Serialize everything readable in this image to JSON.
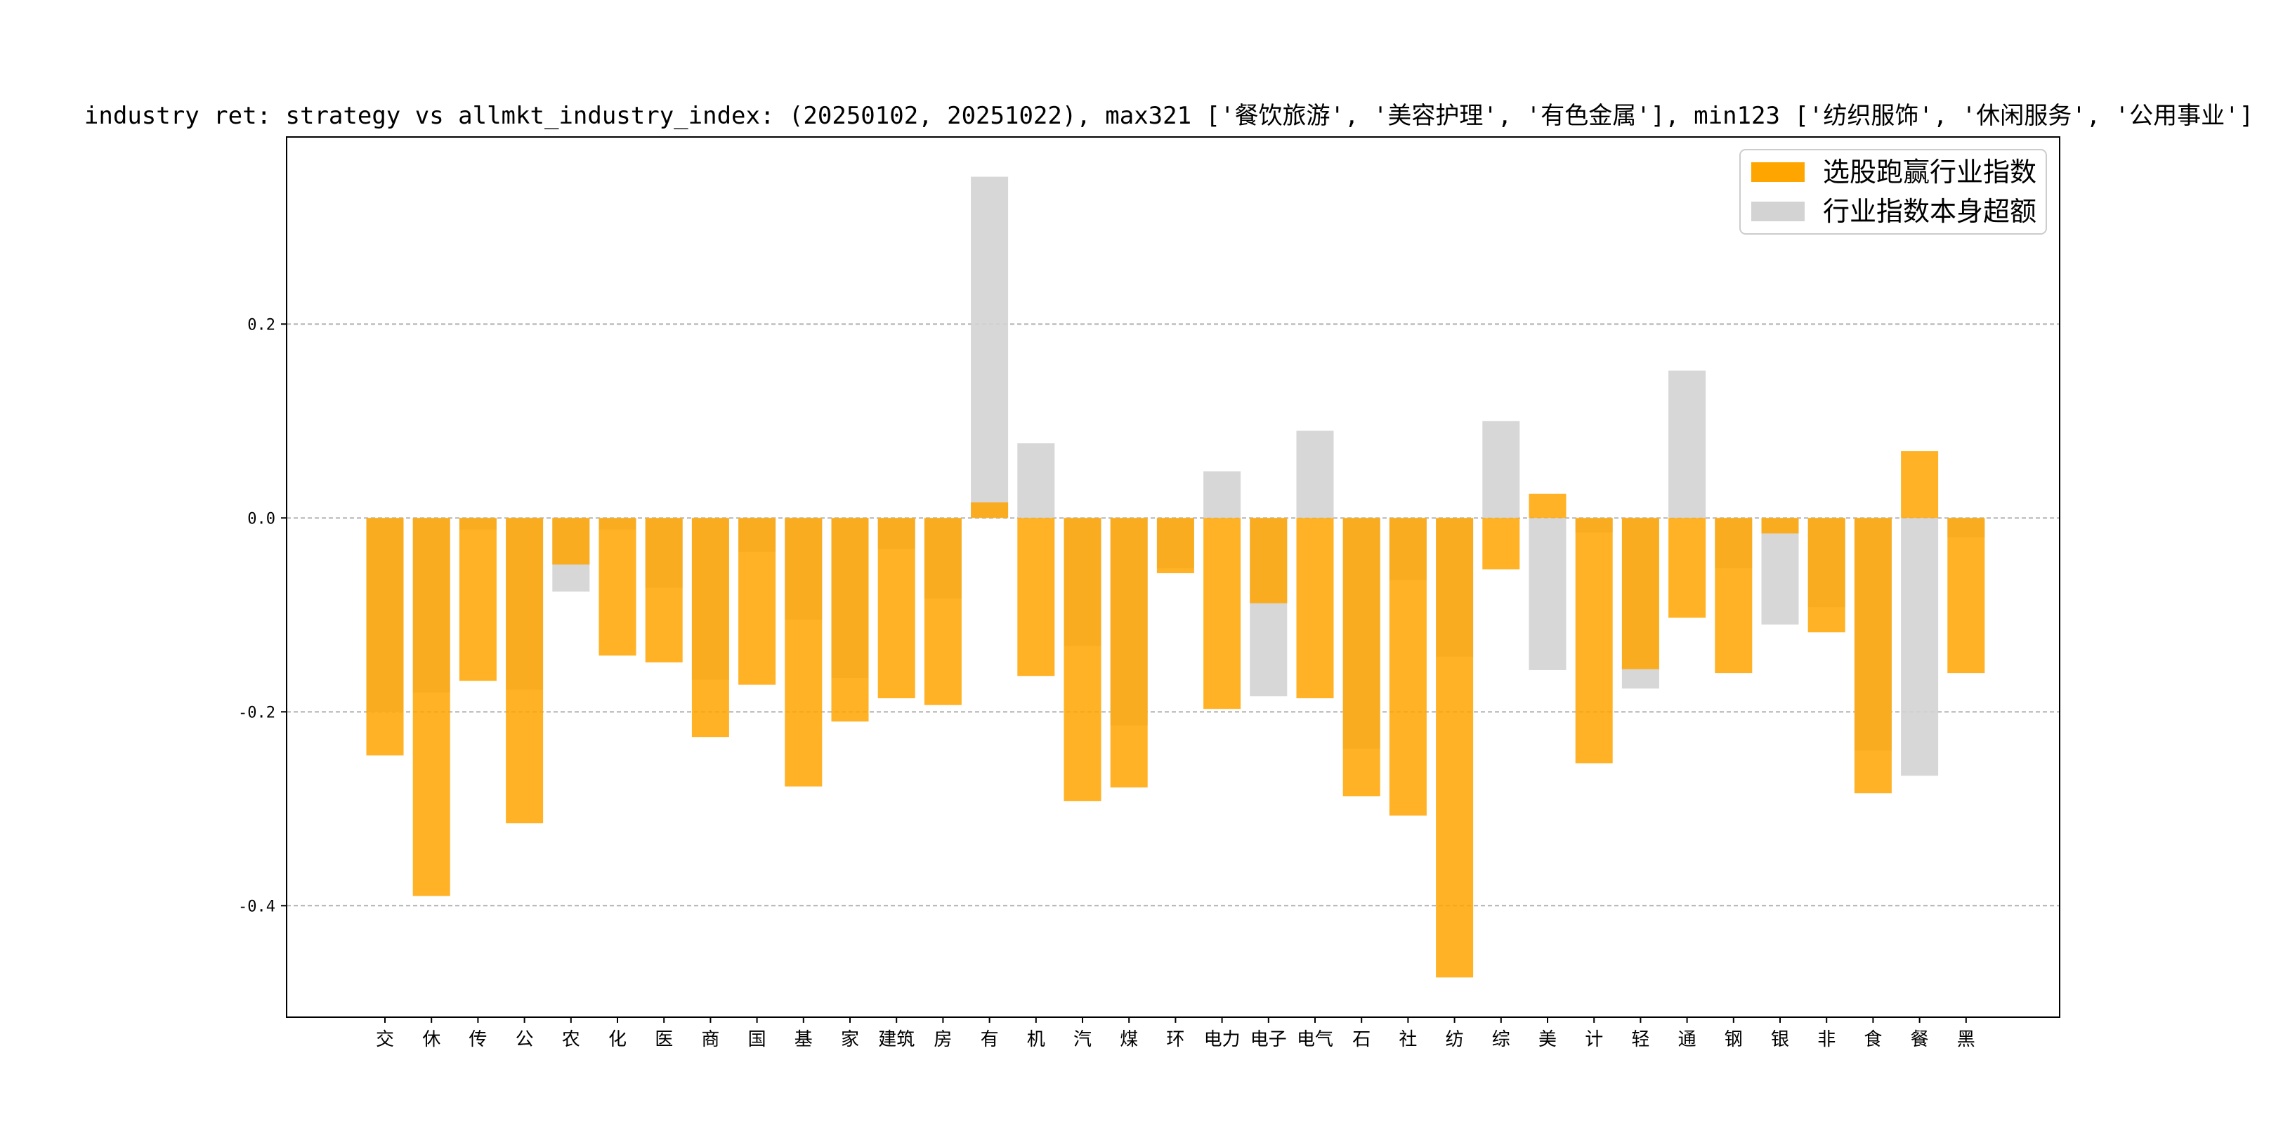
{
  "chart_data": {
    "type": "bar",
    "title": "industry ret: strategy vs allmkt_industry_index: (20250102, 20251022), max321 ['餐饮旅游', '美容护理', '有色金属'], min123 ['纺织服饰', '休闲服务', '公用事业']",
    "categories": [
      "交",
      "休",
      "传",
      "公",
      "农",
      "化",
      "医",
      "商",
      "国",
      "基",
      "家",
      "建筑",
      "房",
      "有",
      "机",
      "汽",
      "煤",
      "环",
      "电力",
      "电子",
      "电气",
      "石",
      "社",
      "纺",
      "综",
      "美",
      "计",
      "轻",
      "通",
      "钢",
      "银",
      "非",
      "食",
      "餐",
      "黑"
    ],
    "series": [
      {
        "name": "选股跑赢行业指数",
        "color": "#FFA500",
        "values": [
          -0.245,
          -0.39,
          -0.168,
          -0.315,
          -0.048,
          -0.142,
          -0.149,
          -0.226,
          -0.172,
          -0.277,
          -0.21,
          -0.186,
          -0.193,
          0.016,
          -0.163,
          -0.292,
          -0.278,
          -0.057,
          -0.197,
          -0.088,
          -0.186,
          -0.287,
          -0.307,
          -0.474,
          -0.053,
          0.025,
          -0.253,
          -0.156,
          -0.103,
          -0.16,
          -0.016,
          -0.118,
          -0.284,
          0.069,
          -0.16
        ]
      },
      {
        "name": "行业指数本身超额",
        "color": "#D3D3D3",
        "values": [
          -0.2,
          -0.18,
          -0.012,
          -0.177,
          -0.076,
          -0.012,
          -0.072,
          -0.167,
          -0.035,
          -0.105,
          -0.165,
          -0.032,
          -0.083,
          0.352,
          0.077,
          -0.132,
          -0.214,
          -0.052,
          0.048,
          -0.184,
          0.09,
          -0.238,
          -0.064,
          -0.143,
          0.1,
          -0.157,
          -0.015,
          -0.176,
          0.152,
          -0.052,
          -0.11,
          -0.092,
          -0.24,
          -0.266,
          -0.02
        ]
      }
    ],
    "yticks": [
      -0.4,
      -0.2,
      0.0,
      0.2
    ],
    "ytick_labels": [
      "-0.4",
      "-0.2",
      "0.0",
      "0.2"
    ],
    "ylim": [
      -0.515,
      0.393
    ],
    "grid": "horizontal dashed",
    "legend_position": "top-right"
  }
}
